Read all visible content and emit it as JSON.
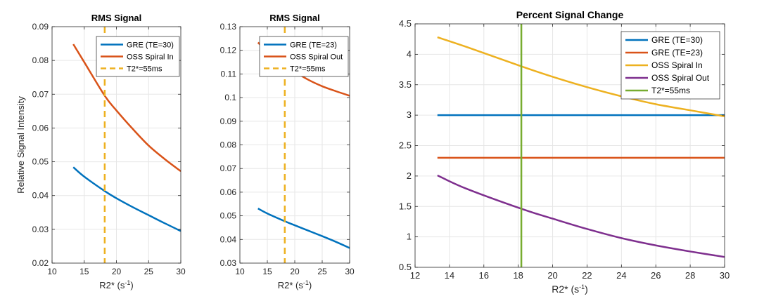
{
  "chart_data": [
    {
      "type": "line",
      "title": "RMS Signal",
      "xlabel_base": "R2* (s",
      "xlabel_sup": "-1",
      "xlabel_end": ")",
      "ylabel": "Relative Signal Intensity",
      "xlim": [
        10,
        30
      ],
      "ylim": [
        0.02,
        0.09
      ],
      "xticks": [
        10,
        15,
        20,
        25,
        30
      ],
      "yticks": [
        0.02,
        0.03,
        0.04,
        0.05,
        0.06,
        0.07,
        0.08,
        0.09
      ],
      "ytick_labels": [
        "0.02",
        "0.03",
        "0.04",
        "0.05",
        "0.06",
        "0.07",
        "0.08",
        "0.09"
      ],
      "grid": true,
      "legend_location": "top-right",
      "series": [
        {
          "name": "GRE (TE=30)",
          "color": "#0072BD",
          "style": "solid",
          "x": [
            13.3,
            15,
            18.2,
            20,
            22.5,
            25,
            27.5,
            30
          ],
          "y": [
            0.0484,
            0.0456,
            0.0413,
            0.0392,
            0.0366,
            0.0342,
            0.0318,
            0.0295
          ]
        },
        {
          "name": "OSS Spiral In",
          "color": "#D95319",
          "style": "solid",
          "x": [
            13.3,
            15,
            18.2,
            20,
            22.5,
            25,
            27.5,
            30
          ],
          "y": [
            0.0848,
            0.0795,
            0.0695,
            0.0652,
            0.0598,
            0.0548,
            0.0508,
            0.0472
          ]
        },
        {
          "name": "T2*=55ms",
          "color": "#EDB120",
          "style": "dashed",
          "vline_x": 18.18
        }
      ]
    },
    {
      "type": "line",
      "title": "RMS Signal",
      "xlabel_base": "R2* (s",
      "xlabel_sup": "-1",
      "xlabel_end": ")",
      "ylabel": "",
      "xlim": [
        10,
        30
      ],
      "ylim": [
        0.03,
        0.13
      ],
      "xticks": [
        10,
        15,
        20,
        25,
        30
      ],
      "yticks": [
        0.03,
        0.04,
        0.05,
        0.06,
        0.07,
        0.08,
        0.09,
        0.1,
        0.11,
        0.12,
        0.13
      ],
      "ytick_labels": [
        "0.03",
        "0.04",
        "0.05",
        "0.06",
        "0.07",
        "0.08",
        "0.09",
        "0.1",
        "0.11",
        "0.12",
        "0.13"
      ],
      "grid": true,
      "legend_location": "top-right",
      "series": [
        {
          "name": "GRE (TE=23)",
          "color": "#0072BD",
          "style": "solid",
          "x": [
            13.3,
            15,
            18.2,
            20,
            22.5,
            25,
            27.5,
            30
          ],
          "y": [
            0.0531,
            0.051,
            0.0477,
            0.046,
            0.0437,
            0.0414,
            0.039,
            0.0364
          ]
        },
        {
          "name": "OSS Spiral Out",
          "color": "#D95319",
          "style": "solid",
          "x": [
            13.3,
            15,
            18.2,
            20,
            22.5,
            25,
            27.5,
            30
          ],
          "y": [
            0.1233,
            0.1195,
            0.114,
            0.111,
            0.1075,
            0.1048,
            0.1027,
            0.1008
          ]
        },
        {
          "name": "T2*=55ms",
          "color": "#EDB120",
          "style": "dashed",
          "vline_x": 18.18
        }
      ]
    },
    {
      "type": "line",
      "title": "Percent Signal Change",
      "xlabel_base": "R2* (s",
      "xlabel_sup": "-1",
      "xlabel_end": ")",
      "ylabel": "",
      "xlim": [
        12,
        30
      ],
      "ylim": [
        0.5,
        4.5
      ],
      "xticks": [
        12,
        14,
        16,
        18,
        20,
        22,
        24,
        26,
        28,
        30
      ],
      "yticks": [
        0.5,
        1,
        1.5,
        2,
        2.5,
        3,
        3.5,
        4,
        4.5
      ],
      "ytick_labels": [
        "0.5",
        "1",
        "1.5",
        "2",
        "2.5",
        "3",
        "3.5",
        "4",
        "4.5"
      ],
      "grid": true,
      "legend_location": "top-right",
      "series": [
        {
          "name": "GRE (TE=30)",
          "color": "#0072BD",
          "style": "solid",
          "x": [
            13.3,
            30
          ],
          "y": [
            3.0,
            3.0
          ]
        },
        {
          "name": "GRE (TE=23)",
          "color": "#D95319",
          "style": "solid",
          "x": [
            13.3,
            30
          ],
          "y": [
            2.3,
            2.3
          ]
        },
        {
          "name": "OSS Spiral In",
          "color": "#EDB120",
          "style": "solid",
          "x": [
            13.3,
            15,
            18.2,
            20,
            22,
            24,
            26,
            28,
            30
          ],
          "y": [
            4.28,
            4.12,
            3.8,
            3.63,
            3.46,
            3.31,
            3.18,
            3.08,
            2.98
          ]
        },
        {
          "name": "OSS Spiral Out",
          "color": "#7E2F8E",
          "style": "solid",
          "x": [
            13.3,
            15,
            18.2,
            20,
            22,
            24,
            26,
            28,
            30
          ],
          "y": [
            2.01,
            1.79,
            1.46,
            1.3,
            1.13,
            0.98,
            0.86,
            0.76,
            0.67
          ]
        },
        {
          "name": "T2*=55ms",
          "color": "#77AC30",
          "style": "solid",
          "vline_x": 18.18
        }
      ]
    }
  ]
}
